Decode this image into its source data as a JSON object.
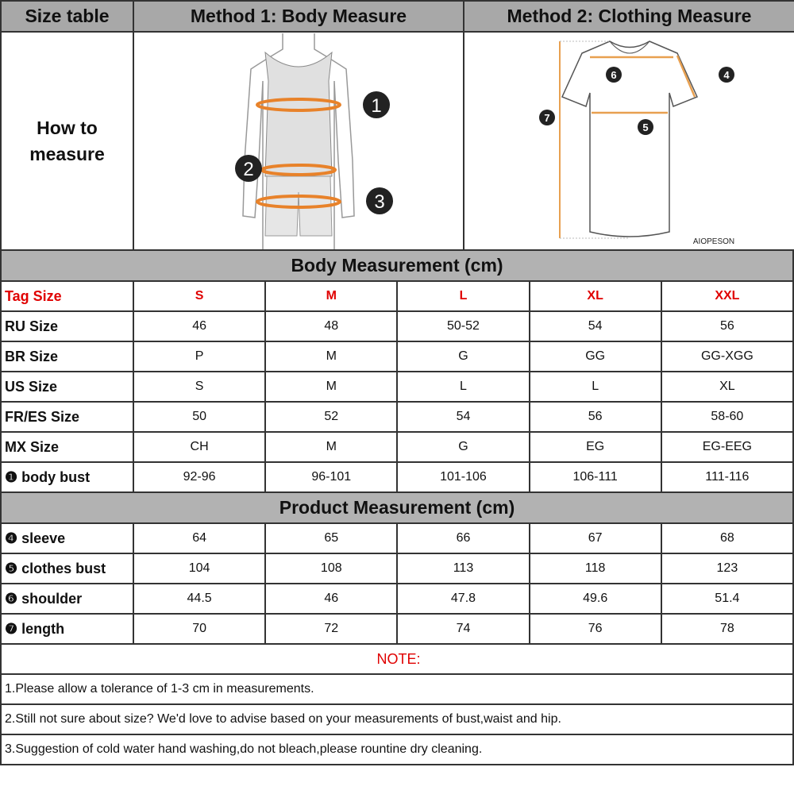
{
  "header": {
    "col1": "Size table",
    "col2": "Method 1: Body  Measure",
    "col3": "Method 2: Clothing Measure"
  },
  "how_to": {
    "line1": "How to",
    "line2": "measure"
  },
  "body_figure": {
    "markers": [
      "1",
      "2",
      "3"
    ],
    "accent": "#e8822a"
  },
  "shirt_figure": {
    "markers": [
      "6",
      "4",
      "7",
      "5"
    ],
    "brand": "AIOPESON",
    "accent": "#e8a050"
  },
  "body_section": "Body Measurement (cm)",
  "product_section": "Product Measurement (cm)",
  "sizes_header": {
    "label": "Tag Size",
    "values": [
      "S",
      "M",
      "L",
      "XL",
      "XXL"
    ]
  },
  "body_rows": [
    {
      "label": "RU Size",
      "values": [
        "46",
        "48",
        "50-52",
        "54",
        "56"
      ]
    },
    {
      "label": "BR Size",
      "values": [
        "P",
        "M",
        "G",
        "GG",
        "GG-XGG"
      ]
    },
    {
      "label": "US Size",
      "values": [
        "S",
        "M",
        "L",
        "L",
        "XL"
      ]
    },
    {
      "label": "FR/ES Size",
      "values": [
        "50",
        "52",
        "54",
        "56",
        "58-60"
      ]
    },
    {
      "label": "MX Size",
      "values": [
        "CH",
        "M",
        "G",
        "EG",
        "EG-EEG"
      ]
    },
    {
      "label": "❶ body bust",
      "values": [
        "92-96",
        "96-101",
        "101-106",
        "106-111",
        "111-116"
      ]
    }
  ],
  "product_rows": [
    {
      "label": "❹ sleeve",
      "values": [
        "64",
        "65",
        "66",
        "67",
        "68"
      ]
    },
    {
      "label": "❺ clothes bust",
      "values": [
        "104",
        "108",
        "113",
        "118",
        "123"
      ]
    },
    {
      "label": "❻ shoulder",
      "values": [
        "44.5",
        "46",
        "47.8",
        "49.6",
        "51.4"
      ]
    },
    {
      "label": "❼ length",
      "values": [
        "70",
        "72",
        "74",
        "76",
        "78"
      ]
    }
  ],
  "notes": {
    "title": "NOTE:",
    "items": [
      "1.Please allow a tolerance of 1-3 cm in measurements.",
      "2.Still not sure about size? We'd love to advise based on your measurements of bust,waist and hip.",
      "3.Suggestion of cold water hand washing,do not bleach,please rountine dry cleaning."
    ]
  }
}
